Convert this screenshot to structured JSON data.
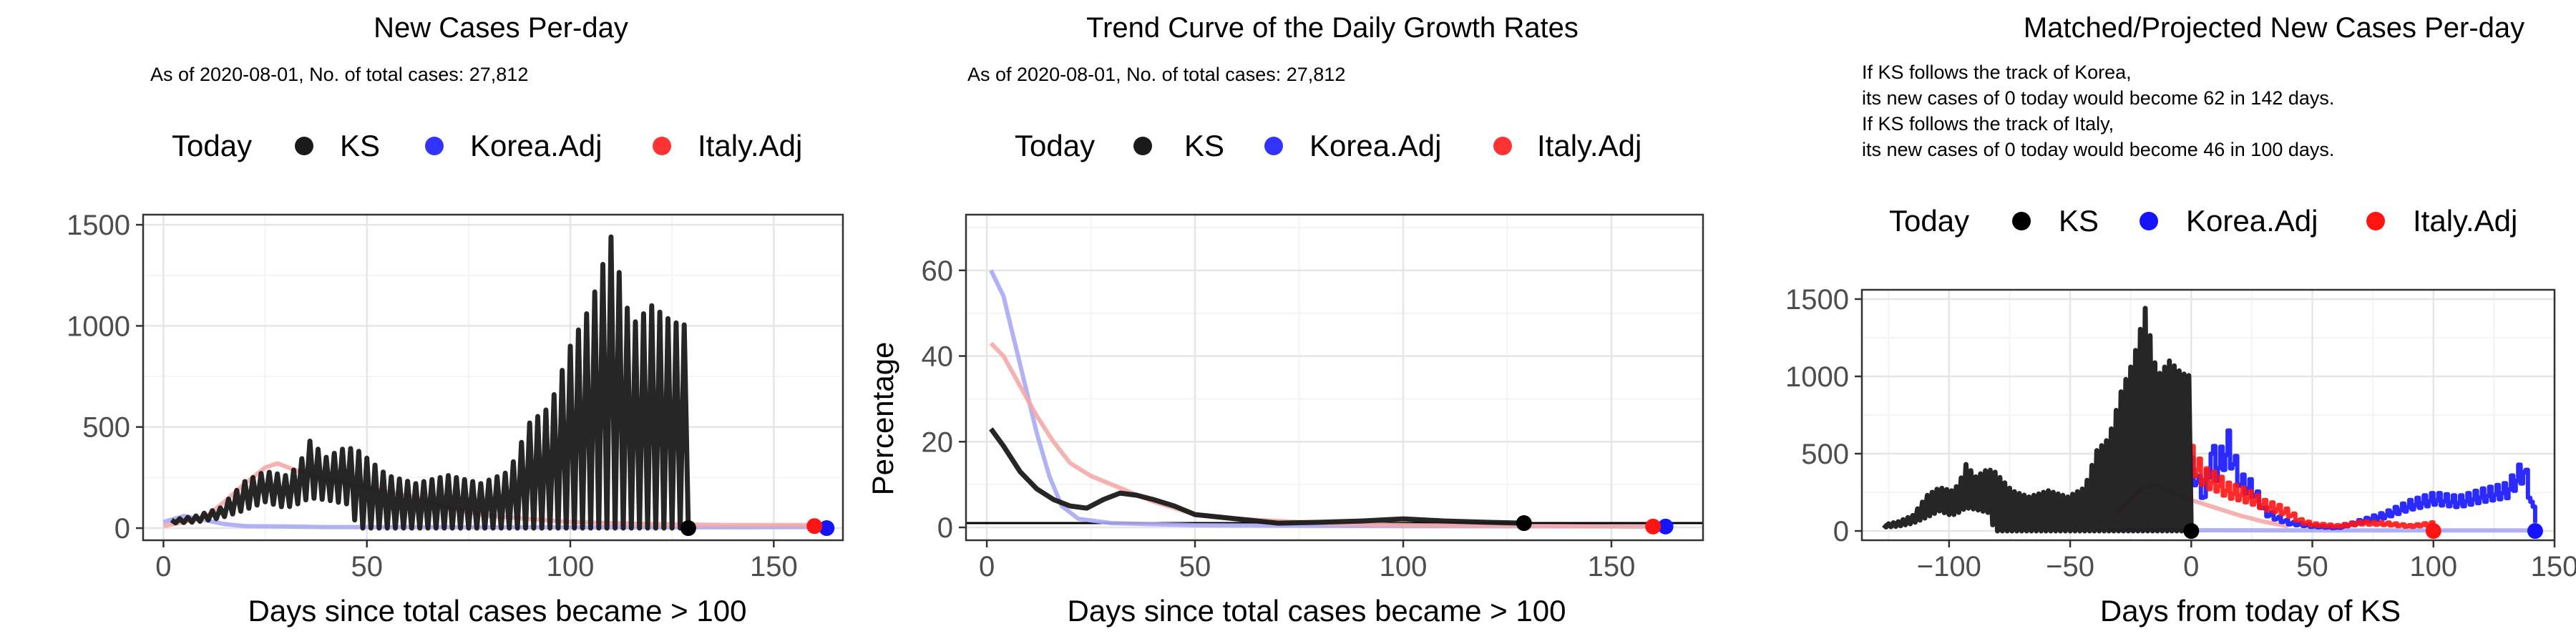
{
  "colors": {
    "ks": "#1a1a1a",
    "korea": "#1414ff",
    "italy": "#ff1414",
    "korea_light": "#a9a9f5",
    "italy_light": "#f5a9a9",
    "grid_major": "#e6e6e6",
    "grid_minor": "#f4f4f4",
    "frame": "#333333"
  },
  "panels": [
    {
      "title": "New Cases Per-day",
      "subtitle_lines": [
        "As of 2020-08-01, No. of total cases: 27,812"
      ],
      "legend": {
        "title": "Today",
        "items": [
          {
            "label": "KS",
            "color": "#1a1a1a"
          },
          {
            "label": "Korea.Adj",
            "color": "#3333ff"
          },
          {
            "label": "Italy.Adj",
            "color": "#ff3333"
          }
        ]
      },
      "xlabel": "Days since total cases became > 100",
      "ylabel": "",
      "xlim": [
        -5,
        167
      ],
      "ylim": [
        -60,
        1550
      ],
      "xticks": [
        0,
        50,
        100,
        150
      ],
      "yticks": [
        0,
        500,
        1000,
        1500
      ]
    },
    {
      "title": "Trend Curve of the Daily Growth Rates",
      "subtitle_lines": [
        "As of 2020-08-01, No. of total cases: 27,812"
      ],
      "legend": {
        "title": "Today",
        "items": [
          {
            "label": "KS",
            "color": "#1a1a1a"
          },
          {
            "label": "Korea.Adj",
            "color": "#3333ff"
          },
          {
            "label": "Italy.Adj",
            "color": "#ff3333"
          }
        ]
      },
      "xlabel": "Days since total cases became > 100",
      "ylabel": "Percentage",
      "xlim": [
        -5,
        172
      ],
      "ylim": [
        -3,
        73
      ],
      "xticks": [
        0,
        50,
        100,
        150
      ],
      "yticks": [
        0,
        20,
        40,
        60
      ]
    },
    {
      "title": "Matched/Projected New Cases Per-day",
      "subtitle_lines": [
        "If KS follows the track of Korea,",
        "its new cases of 0 today would become 62 in 142 days.",
        "If KS follows the track of Italy,",
        "its new cases of 0 today would become 46 in 100 days."
      ],
      "legend": {
        "title": "Today",
        "items": [
          {
            "label": "KS",
            "color": "#000000"
          },
          {
            "label": "Korea.Adj",
            "color": "#1414ff"
          },
          {
            "label": "Italy.Adj",
            "color": "#ff1414"
          }
        ]
      },
      "xlabel": "Days from today of KS",
      "ylabel": "",
      "xlim": [
        -136,
        150
      ],
      "ylim": [
        -60,
        1560
      ],
      "xticks": [
        -100,
        -50,
        0,
        50,
        100,
        150
      ],
      "yticks": [
        0,
        500,
        1000,
        1500
      ]
    }
  ],
  "chart_data": [
    {
      "type": "line",
      "title": "New Cases Per-day",
      "xlabel": "Days since total cases became > 100",
      "ylabel": "",
      "xlim": [
        -5,
        167
      ],
      "ylim": [
        -60,
        1550
      ],
      "series": [
        {
          "name": "KS",
          "style": "oscillating",
          "x": [
            2,
            8,
            14,
            20,
            25,
            30,
            33,
            36,
            40,
            45,
            48,
            55,
            62,
            70,
            78,
            85,
            90,
            95,
            100,
            105,
            110,
            115,
            120,
            125,
            129
          ],
          "hi": [
            40,
            60,
            100,
            230,
            280,
            260,
            300,
            430,
            350,
            400,
            380,
            260,
            220,
            260,
            220,
            280,
            520,
            600,
            900,
            1100,
            1440,
            1000,
            1100,
            1020,
            1000
          ],
          "lo": [
            25,
            30,
            50,
            90,
            130,
            100,
            120,
            150,
            140,
            120,
            0,
            0,
            0,
            0,
            0,
            0,
            0,
            0,
            0,
            0,
            0,
            0,
            0,
            0,
            0
          ]
        },
        {
          "name": "Korea.Adj",
          "x": [
            0,
            5,
            10,
            15,
            20,
            30,
            40,
            60,
            80,
            100,
            120,
            140,
            155,
            163
          ],
          "y": [
            30,
            60,
            40,
            20,
            10,
            8,
            5,
            5,
            4,
            4,
            4,
            4,
            5,
            5
          ]
        },
        {
          "name": "Italy.Adj",
          "x": [
            0,
            10,
            15,
            20,
            25,
            28,
            32,
            40,
            50,
            60,
            70,
            80,
            100,
            120,
            140,
            160
          ],
          "y": [
            10,
            50,
            130,
            220,
            300,
            320,
            290,
            240,
            200,
            160,
            100,
            60,
            30,
            20,
            15,
            15
          ]
        }
      ],
      "today_points": [
        {
          "series": "KS",
          "x": 129,
          "y": 0
        },
        {
          "series": "Korea.Adj",
          "x": 163,
          "y": 0
        },
        {
          "series": "Italy.Adj",
          "x": 160,
          "y": 10
        }
      ]
    },
    {
      "type": "line",
      "title": "Trend Curve of the Daily Growth Rates",
      "xlabel": "Days since total cases became > 100",
      "ylabel": "Percentage",
      "xlim": [
        -5,
        172
      ],
      "ylim": [
        -3,
        73
      ],
      "hline": 1,
      "series": [
        {
          "name": "KS",
          "x": [
            1,
            4,
            8,
            12,
            16,
            20,
            24,
            28,
            32,
            36,
            40,
            45,
            50,
            60,
            70,
            80,
            90,
            100,
            110,
            120,
            129
          ],
          "y": [
            23,
            19,
            13,
            9,
            6.5,
            5,
            4.5,
            6.5,
            8,
            7.5,
            6.5,
            5,
            3,
            2,
            1,
            1.2,
            1.5,
            2,
            1.5,
            1.2,
            1
          ]
        },
        {
          "name": "Korea.Adj",
          "x": [
            1,
            4,
            7,
            10,
            12,
            15,
            18,
            22,
            30,
            50,
            100,
            163
          ],
          "y": [
            60,
            54,
            42,
            30,
            22,
            12,
            5,
            2,
            1,
            0.5,
            0.3,
            0.2
          ]
        },
        {
          "name": "Italy.Adj",
          "x": [
            1,
            4,
            8,
            12,
            16,
            20,
            25,
            30,
            40,
            50,
            60,
            80,
            100,
            130,
            160
          ],
          "y": [
            43,
            40,
            33,
            26,
            20,
            15,
            12,
            10,
            6,
            3,
            2,
            1,
            0.5,
            0.3,
            0.2
          ]
        }
      ],
      "today_points": [
        {
          "series": "KS",
          "x": 129,
          "y": 1
        },
        {
          "series": "Korea.Adj",
          "x": 163,
          "y": 0.2
        },
        {
          "series": "Italy.Adj",
          "x": 160,
          "y": 0.2
        }
      ]
    },
    {
      "type": "line",
      "title": "Matched/Projected New Cases Per-day",
      "xlabel": "Days from today of KS",
      "ylabel": "",
      "xlim": [
        -136,
        150
      ],
      "ylim": [
        -60,
        1560
      ],
      "series": [
        {
          "name": "KS",
          "style": "oscillating",
          "x": [
            -127,
            -121,
            -115,
            -109,
            -104,
            -99,
            -96,
            -93,
            -89,
            -84,
            -81,
            -74,
            -67,
            -59,
            -51,
            -44,
            -39,
            -34,
            -29,
            -24,
            -19,
            -14,
            -9,
            -4,
            0
          ],
          "hi": [
            40,
            60,
            100,
            230,
            280,
            260,
            300,
            430,
            350,
            400,
            380,
            260,
            220,
            260,
            220,
            280,
            520,
            600,
            900,
            1100,
            1440,
            1000,
            1100,
            1020,
            1000
          ],
          "lo": [
            25,
            30,
            50,
            90,
            130,
            100,
            120,
            150,
            140,
            120,
            0,
            0,
            0,
            0,
            0,
            0,
            0,
            0,
            0,
            0,
            0,
            0,
            0,
            0,
            0
          ]
        },
        {
          "name": "Korea.Adj (matched)",
          "x": [
            -34,
            -20,
            -10,
            0,
            50,
            100,
            140
          ],
          "y": [
            5,
            5,
            5,
            5,
            4,
            4,
            4
          ]
        },
        {
          "name": "Italy.Adj (matched)",
          "x": [
            -31,
            -25,
            -20,
            -15,
            -10,
            -5,
            0,
            10,
            20,
            30,
            40
          ],
          "y": [
            100,
            200,
            280,
            300,
            260,
            230,
            200,
            150,
            100,
            60,
            30
          ]
        },
        {
          "name": "Korea.Adj (projected)",
          "x": [
            0,
            5,
            8,
            10,
            15,
            20,
            25,
            30,
            35,
            40,
            50,
            60,
            70,
            80,
            90,
            100,
            110,
            120,
            130,
            137,
            142
          ],
          "y": [
            380,
            220,
            500,
            380,
            520,
            300,
            260,
            120,
            80,
            50,
            30,
            20,
            60,
            100,
            160,
            200,
            180,
            220,
            250,
            380,
            62
          ]
        },
        {
          "name": "Italy.Adj (projected)",
          "x": [
            0,
            5,
            10,
            15,
            20,
            25,
            30,
            35,
            40,
            45,
            50,
            60,
            70,
            80,
            90,
            100
          ],
          "y": [
            440,
            330,
            300,
            250,
            230,
            200,
            160,
            140,
            110,
            60,
            40,
            30,
            50,
            45,
            30,
            46
          ]
        }
      ],
      "today_points": [
        {
          "series": "KS",
          "x": 0,
          "y": 0
        },
        {
          "series": "Korea.Adj",
          "x": 142,
          "y": 0
        },
        {
          "series": "Italy.Adj",
          "x": 100,
          "y": 0
        }
      ]
    }
  ]
}
